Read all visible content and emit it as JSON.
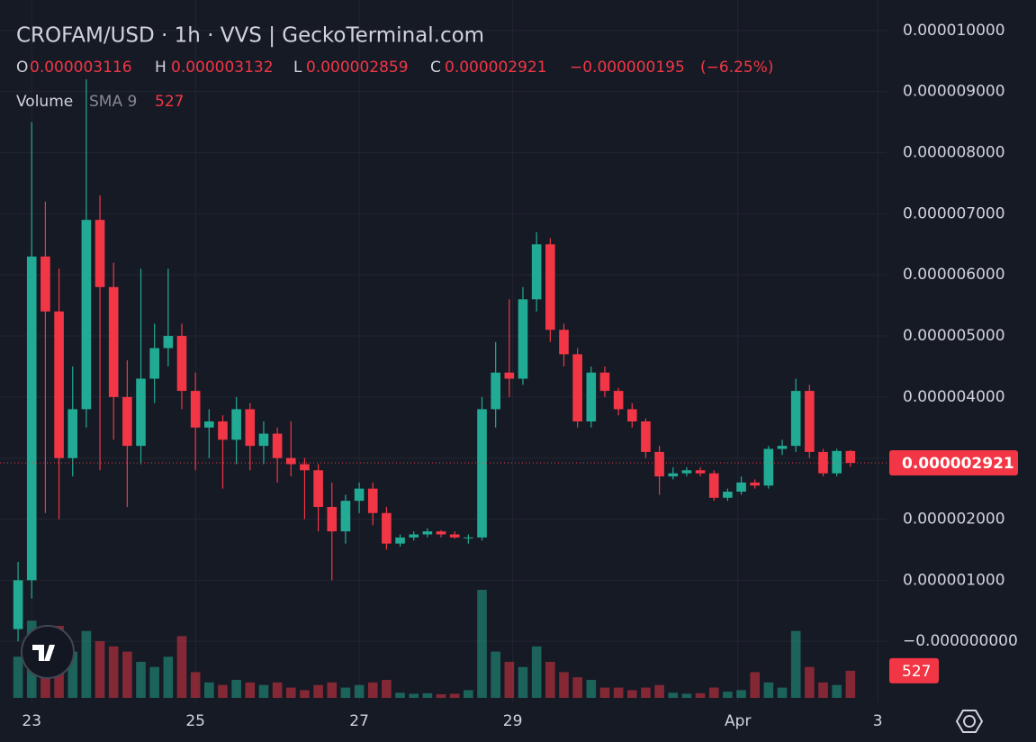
{
  "chart_data": {
    "type": "candlestick",
    "title": "CROFAM/USD · 1h · VVS | GeckoTerminal.com",
    "ohlc_keys": [
      "O",
      "H",
      "L",
      "C"
    ],
    "change": {
      "value": -1.95e-07,
      "label": "−0.000000195"
    },
    "change_percent": {
      "value": -6.25,
      "label": "(−6.25%)"
    },
    "volume_legend": {
      "title": "Volume",
      "sma": "SMA 9"
    },
    "up_color": "#22ab94",
    "down_color": "#f23645",
    "grid": true,
    "x": [
      0,
      4,
      8,
      12,
      16,
      20,
      24,
      28,
      32,
      36,
      40,
      44,
      48,
      52,
      56,
      60,
      64,
      68,
      72,
      76,
      80,
      84,
      88,
      92,
      96,
      100,
      104,
      108,
      112,
      116,
      120,
      124,
      128,
      132,
      136,
      140,
      144,
      148,
      152,
      156,
      160,
      164,
      168,
      172,
      176,
      180,
      184,
      188,
      192,
      196,
      200,
      204,
      208,
      212,
      216,
      220,
      224,
      228,
      232,
      236,
      240,
      244
    ],
    "open": [
      2e-07,
      1e-06,
      6.3e-06,
      5.4e-06,
      3e-06,
      3.8e-06,
      6.9e-06,
      5.8e-06,
      4e-06,
      3.2e-06,
      4.3e-06,
      4.8e-06,
      5e-06,
      4.1e-06,
      3.5e-06,
      3.6e-06,
      3.3e-06,
      3.8e-06,
      3.2e-06,
      3.4e-06,
      3e-06,
      2.9e-06,
      2.8e-06,
      2.2e-06,
      1.8e-06,
      2.3e-06,
      2.5e-06,
      2.1e-06,
      1.6e-06,
      1.7e-06,
      1.75e-06,
      1.8e-06,
      1.75e-06,
      1.7e-06,
      1.7e-06,
      3.8e-06,
      4.4e-06,
      4.3e-06,
      5.6e-06,
      6.5e-06,
      5.1e-06,
      4.7e-06,
      3.6e-06,
      4.4e-06,
      4.1e-06,
      3.8e-06,
      3.6e-06,
      3.1e-06,
      2.7e-06,
      2.75e-06,
      2.8e-06,
      2.75e-06,
      2.35e-06,
      2.45e-06,
      2.6e-06,
      2.55e-06,
      3.15e-06,
      3.2e-06,
      4.1e-06,
      3.1e-06,
      2.75e-06,
      3.116e-06
    ],
    "high": [
      1.3e-06,
      8.5e-06,
      7.2e-06,
      6.1e-06,
      4.5e-06,
      9.2e-06,
      7.3e-06,
      6.2e-06,
      4.6e-06,
      6.1e-06,
      5.2e-06,
      6.1e-06,
      5.2e-06,
      4.4e-06,
      3.8e-06,
      3.7e-06,
      4e-06,
      3.9e-06,
      3.6e-06,
      3.5e-06,
      3.6e-06,
      3e-06,
      2.9e-06,
      2.6e-06,
      2.4e-06,
      2.6e-06,
      2.6e-06,
      2.2e-06,
      1.75e-06,
      1.8e-06,
      1.85e-06,
      1.82e-06,
      1.8e-06,
      1.75e-06,
      4e-06,
      4.9e-06,
      5.6e-06,
      5.8e-06,
      6.7e-06,
      6.6e-06,
      5.2e-06,
      4.8e-06,
      4.5e-06,
      4.5e-06,
      4.15e-06,
      3.9e-06,
      3.65e-06,
      3.2e-06,
      2.85e-06,
      2.85e-06,
      2.85e-06,
      2.8e-06,
      2.5e-06,
      2.7e-06,
      2.65e-06,
      3.2e-06,
      3.3e-06,
      4.3e-06,
      4.2e-06,
      3.15e-06,
      3.15e-06,
      3.132e-06
    ],
    "low": [
      0,
      7e-07,
      2.1e-06,
      2e-06,
      2.7e-06,
      3.5e-06,
      2.8e-06,
      3.3e-06,
      2.2e-06,
      2.9e-06,
      3.9e-06,
      4.5e-06,
      3.8e-06,
      2.8e-06,
      3e-06,
      2.5e-06,
      2.9e-06,
      2.8e-06,
      2.9e-06,
      2.6e-06,
      2.7e-06,
      2e-06,
      1.8e-06,
      1e-06,
      1.6e-06,
      2.1e-06,
      1.9e-06,
      1.5e-06,
      1.55e-06,
      1.65e-06,
      1.7e-06,
      1.7e-06,
      1.68e-06,
      1.6e-06,
      1.65e-06,
      3.5e-06,
      4e-06,
      4.2e-06,
      5.4e-06,
      4.9e-06,
      4.5e-06,
      3.5e-06,
      3.5e-06,
      4e-06,
      3.7e-06,
      3.5e-06,
      3e-06,
      2.4e-06,
      2.65e-06,
      2.7e-06,
      2.7e-06,
      2.3e-06,
      2.3e-06,
      2.4e-06,
      2.5e-06,
      2.5e-06,
      3.05e-06,
      3.1e-06,
      3e-06,
      2.7e-06,
      2.7e-06,
      2.859e-06
    ],
    "close": [
      1e-06,
      6.3e-06,
      5.4e-06,
      3e-06,
      3.8e-06,
      6.9e-06,
      5.8e-06,
      4e-06,
      3.2e-06,
      4.3e-06,
      4.8e-06,
      5e-06,
      4.1e-06,
      3.5e-06,
      3.6e-06,
      3.3e-06,
      3.8e-06,
      3.2e-06,
      3.4e-06,
      3e-06,
      2.9e-06,
      2.8e-06,
      2.2e-06,
      1.8e-06,
      2.3e-06,
      2.5e-06,
      2.1e-06,
      1.6e-06,
      1.7e-06,
      1.75e-06,
      1.8e-06,
      1.75e-06,
      1.7e-06,
      1.7e-06,
      3.8e-06,
      4.4e-06,
      4.3e-06,
      5.6e-06,
      6.5e-06,
      5.1e-06,
      4.7e-06,
      3.6e-06,
      4.4e-06,
      4.1e-06,
      3.8e-06,
      3.6e-06,
      3.1e-06,
      2.7e-06,
      2.75e-06,
      2.8e-06,
      2.75e-06,
      2.35e-06,
      2.45e-06,
      2.6e-06,
      2.55e-06,
      3.15e-06,
      3.2e-06,
      4.1e-06,
      3.1e-06,
      2.75e-06,
      3.116e-06,
      2.921e-06
    ],
    "volume": [
      800,
      1500,
      1200,
      1400,
      900,
      1300,
      1100,
      1000,
      900,
      700,
      600,
      800,
      1200,
      500,
      300,
      250,
      350,
      300,
      250,
      300,
      200,
      150,
      250,
      300,
      200,
      250,
      300,
      350,
      100,
      80,
      90,
      70,
      80,
      150,
      2100,
      900,
      700,
      600,
      1000,
      700,
      500,
      400,
      350,
      200,
      200,
      150,
      200,
      250,
      100,
      80,
      90,
      200,
      120,
      150,
      500,
      300,
      200,
      1300,
      600,
      300,
      250,
      527
    ],
    "xlim": [
      -5.3,
      254.6
    ],
    "xticks": [
      {
        "value": 4,
        "label": "23"
      },
      {
        "value": 52,
        "label": "25"
      },
      {
        "value": 100,
        "label": "27"
      },
      {
        "value": 145,
        "label": "29"
      },
      {
        "value": 211,
        "label": "Apr"
      },
      {
        "value": 252,
        "label": "3"
      }
    ],
    "ylim": [
      -1e-06,
      1.05e-05
    ],
    "yticks": [
      {
        "value": 0,
        "label": "−0.000000000"
      },
      {
        "value": 1e-06,
        "label": "0.000001000"
      },
      {
        "value": 2e-06,
        "label": "0.000002000"
      },
      {
        "value": 3e-06,
        "label": "0.000003000"
      },
      {
        "value": 4e-06,
        "label": "0.000004000"
      },
      {
        "value": 5e-06,
        "label": "0.000005000"
      },
      {
        "value": 6e-06,
        "label": "0.000006000"
      },
      {
        "value": 7e-06,
        "label": "0.000007000"
      },
      {
        "value": 8e-06,
        "label": "0.000008000"
      },
      {
        "value": 9e-06,
        "label": "0.000009000"
      },
      {
        "value": 1e-05,
        "label": "0.000010000"
      }
    ]
  }
}
